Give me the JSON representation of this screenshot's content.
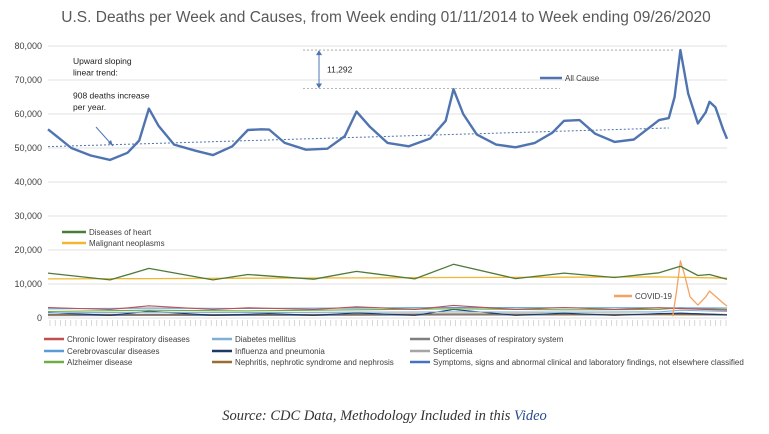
{
  "chart_data": {
    "type": "line",
    "title": "U.S. Deaths per Week and Causes, from Week ending 01/11/2014 to Week ending 09/26/2020",
    "x_range": [
      "2014-01-11",
      "2020-09-26"
    ],
    "ylim": [
      0,
      80000
    ],
    "yticks": [
      "0",
      "10,000",
      "20,000",
      "30,000",
      "40,000",
      "50,000",
      "60,000",
      "70,000",
      "80,000"
    ],
    "grid": true,
    "series": [
      {
        "name": "All Cause",
        "color": "#4f74b0",
        "points": [
          [
            "2014-01-11",
            55500
          ],
          [
            "2014-02-15",
            53200
          ],
          [
            "2014-04-05",
            50000
          ],
          [
            "2014-06-14",
            47800
          ],
          [
            "2014-08-23",
            46500
          ],
          [
            "2014-10-25",
            48600
          ],
          [
            "2014-12-06",
            52200
          ],
          [
            "2015-01-10",
            61600
          ],
          [
            "2015-02-14",
            56500
          ],
          [
            "2015-04-11",
            51000
          ],
          [
            "2015-06-27",
            49200
          ],
          [
            "2015-08-29",
            47900
          ],
          [
            "2015-11-07",
            50500
          ],
          [
            "2016-01-02",
            55300
          ],
          [
            "2016-02-20",
            55500
          ],
          [
            "2016-03-19",
            55400
          ],
          [
            "2016-05-14",
            51500
          ],
          [
            "2016-07-30",
            49500
          ],
          [
            "2016-10-15",
            49800
          ],
          [
            "2016-12-17",
            53500
          ],
          [
            "2017-01-28",
            60700
          ],
          [
            "2017-03-18",
            56200
          ],
          [
            "2017-05-20",
            51500
          ],
          [
            "2017-08-05",
            50500
          ],
          [
            "2017-10-21",
            52800
          ],
          [
            "2017-12-16",
            58000
          ],
          [
            "2018-01-13",
            67300
          ],
          [
            "2018-02-17",
            60000
          ],
          [
            "2018-04-07",
            54000
          ],
          [
            "2018-06-16",
            51000
          ],
          [
            "2018-08-25",
            50200
          ],
          [
            "2018-11-03",
            51500
          ],
          [
            "2019-01-05",
            54500
          ],
          [
            "2019-02-16",
            58000
          ],
          [
            "2019-04-13",
            58200
          ],
          [
            "2019-06-08",
            54200
          ],
          [
            "2019-08-17",
            51800
          ],
          [
            "2019-10-26",
            52500
          ],
          [
            "2019-12-21",
            56000
          ],
          [
            "2020-01-25",
            58200
          ],
          [
            "2020-02-29",
            58800
          ],
          [
            "2020-03-21",
            65000
          ],
          [
            "2020-04-11",
            78800
          ],
          [
            "2020-05-09",
            66000
          ],
          [
            "2020-06-13",
            57200
          ],
          [
            "2020-07-11",
            60500
          ],
          [
            "2020-07-25",
            63600
          ],
          [
            "2020-08-15",
            62000
          ],
          [
            "2020-09-12",
            55500
          ],
          [
            "2020-09-26",
            52700
          ]
        ]
      },
      {
        "name": "Diseases of heart",
        "color": "#4e7a3a",
        "points": [
          [
            "2014-01-11",
            13200
          ],
          [
            "2014-08-23",
            11200
          ],
          [
            "2015-01-10",
            14600
          ],
          [
            "2015-08-29",
            11200
          ],
          [
            "2016-01-02",
            12800
          ],
          [
            "2016-08-27",
            11400
          ],
          [
            "2017-01-28",
            13700
          ],
          [
            "2017-08-26",
            11500
          ],
          [
            "2018-01-13",
            15800
          ],
          [
            "2018-08-25",
            11600
          ],
          [
            "2019-02-16",
            13200
          ],
          [
            "2019-08-17",
            11900
          ],
          [
            "2020-01-25",
            13300
          ],
          [
            "2020-04-11",
            15200
          ],
          [
            "2020-06-13",
            12500
          ],
          [
            "2020-07-25",
            12800
          ],
          [
            "2020-09-26",
            11400
          ]
        ]
      },
      {
        "name": "Malignant neoplasms",
        "color": "#f2b731",
        "points": [
          [
            "2014-01-11",
            11500
          ],
          [
            "2015-01-10",
            11600
          ],
          [
            "2016-01-02",
            11700
          ],
          [
            "2017-01-28",
            11800
          ],
          [
            "2018-01-13",
            11900
          ],
          [
            "2019-02-16",
            12000
          ],
          [
            "2020-01-25",
            12100
          ],
          [
            "2020-09-26",
            11700
          ]
        ]
      },
      {
        "name": "COVID-19",
        "color": "#f4a261",
        "points": [
          [
            "2020-03-14",
            500
          ],
          [
            "2020-03-28",
            8000
          ],
          [
            "2020-04-11",
            16800
          ],
          [
            "2020-04-25",
            13000
          ],
          [
            "2020-05-16",
            6200
          ],
          [
            "2020-06-13",
            3800
          ],
          [
            "2020-07-11",
            6200
          ],
          [
            "2020-07-25",
            7900
          ],
          [
            "2020-08-15",
            6400
          ],
          [
            "2020-09-12",
            4400
          ],
          [
            "2020-09-26",
            3500
          ]
        ]
      },
      {
        "name": "Chronic lower respiratory diseases",
        "color": "#c0504d",
        "points": [
          [
            "2014-01-11",
            3100
          ],
          [
            "2014-08-23",
            2500
          ],
          [
            "2015-01-10",
            3600
          ],
          [
            "2015-08-29",
            2500
          ],
          [
            "2016-01-02",
            3000
          ],
          [
            "2016-08-27",
            2500
          ],
          [
            "2017-01-28",
            3300
          ],
          [
            "2017-08-26",
            2500
          ],
          [
            "2018-01-13",
            3700
          ],
          [
            "2018-08-25",
            2500
          ],
          [
            "2019-02-16",
            3100
          ],
          [
            "2019-08-17",
            2500
          ],
          [
            "2020-01-25",
            3000
          ],
          [
            "2020-09-26",
            2300
          ]
        ]
      },
      {
        "name": "Cerebrovascular diseases",
        "color": "#5b9bd5",
        "points": [
          [
            "2014-01-11",
            2700
          ],
          [
            "2015-01-10",
            2900
          ],
          [
            "2016-01-02",
            2800
          ],
          [
            "2017-01-28",
            2900
          ],
          [
            "2018-01-13",
            3100
          ],
          [
            "2019-02-16",
            3000
          ],
          [
            "2020-01-25",
            3000
          ],
          [
            "2020-09-26",
            2900
          ]
        ]
      },
      {
        "name": "Alzheimer disease",
        "color": "#70ad47",
        "points": [
          [
            "2014-01-11",
            1900
          ],
          [
            "2015-01-10",
            2300
          ],
          [
            "2016-01-02",
            2100
          ],
          [
            "2017-01-28",
            2400
          ],
          [
            "2018-01-13",
            2700
          ],
          [
            "2019-02-16",
            2400
          ],
          [
            "2020-01-25",
            2500
          ],
          [
            "2020-04-11",
            3000
          ],
          [
            "2020-09-26",
            2500
          ]
        ]
      },
      {
        "name": "Diabetes mellitus",
        "color": "#7fb0d8",
        "points": [
          [
            "2014-01-11",
            1500
          ],
          [
            "2015-01-10",
            1700
          ],
          [
            "2016-01-02",
            1600
          ],
          [
            "2017-01-28",
            1700
          ],
          [
            "2018-01-13",
            1800
          ],
          [
            "2019-02-16",
            1700
          ],
          [
            "2020-01-25",
            1800
          ],
          [
            "2020-04-11",
            2300
          ],
          [
            "2020-09-26",
            1900
          ]
        ]
      },
      {
        "name": "Influenza and pneumonia",
        "color": "#1f3864",
        "points": [
          [
            "2014-01-11",
            1600
          ],
          [
            "2014-08-23",
            800
          ],
          [
            "2015-01-10",
            2000
          ],
          [
            "2015-08-29",
            800
          ],
          [
            "2016-01-02",
            1100
          ],
          [
            "2016-03-19",
            1300
          ],
          [
            "2016-08-27",
            800
          ],
          [
            "2017-01-28",
            1500
          ],
          [
            "2017-08-26",
            800
          ],
          [
            "2018-01-13",
            2500
          ],
          [
            "2018-08-25",
            800
          ],
          [
            "2019-02-16",
            1400
          ],
          [
            "2019-08-17",
            800
          ],
          [
            "2020-01-25",
            1300
          ],
          [
            "2020-04-11",
            1400
          ],
          [
            "2020-09-26",
            900
          ]
        ]
      },
      {
        "name": "Nephritis, nephrotic syndrome and nephrosis",
        "color": "#9c6b30",
        "points": [
          [
            "2014-01-11",
            1000
          ],
          [
            "2015-01-10",
            1100
          ],
          [
            "2016-01-02",
            1000
          ],
          [
            "2017-01-28",
            1100
          ],
          [
            "2018-01-13",
            1200
          ],
          [
            "2019-02-16",
            1100
          ],
          [
            "2020-01-25",
            1100
          ],
          [
            "2020-09-26",
            1000
          ]
        ]
      },
      {
        "name": "Other diseases of respiratory system",
        "color": "#7f7f7f",
        "points": [
          [
            "2014-01-11",
            900
          ],
          [
            "2015-01-10",
            1000
          ],
          [
            "2016-01-02",
            900
          ],
          [
            "2017-01-28",
            1000
          ],
          [
            "2018-01-13",
            1100
          ],
          [
            "2019-02-16",
            1000
          ],
          [
            "2020-01-25",
            1000
          ],
          [
            "2020-09-26",
            900
          ]
        ]
      },
      {
        "name": "Septicemia",
        "color": "#a5a5a5",
        "points": [
          [
            "2014-01-11",
            800
          ],
          [
            "2015-01-10",
            900
          ],
          [
            "2016-01-02",
            850
          ],
          [
            "2017-01-28",
            900
          ],
          [
            "2018-01-13",
            950
          ],
          [
            "2019-02-16",
            900
          ],
          [
            "2020-01-25",
            900
          ],
          [
            "2020-09-26",
            850
          ]
        ]
      },
      {
        "name": "Symptoms, signs and abnormal clinical and laboratory findings, not elsewhere classified",
        "color": "#4472c4",
        "points": [
          [
            "2014-01-11",
            700
          ],
          [
            "2015-01-10",
            750
          ],
          [
            "2016-01-02",
            750
          ],
          [
            "2017-01-28",
            800
          ],
          [
            "2018-01-13",
            850
          ],
          [
            "2019-02-16",
            850
          ],
          [
            "2020-01-25",
            900
          ],
          [
            "2020-04-11",
            1400
          ],
          [
            "2020-09-26",
            1000
          ]
        ]
      }
    ],
    "trendline": {
      "from": [
        "2014-01-11",
        50400
      ],
      "to": [
        "2020-02-29",
        55900
      ],
      "color": "#4f74b0"
    },
    "annotations": {
      "trend_note": [
        "Upward sloping",
        "linear trend:",
        "",
        "908 deaths increase",
        "per year."
      ],
      "gap_value": "11,292",
      "gap_range": [
        67500,
        78800
      ]
    },
    "legend_lower": [
      "Chronic lower respiratory diseases",
      "Diabetes mellitus",
      "Other diseases of respiratory system",
      "Cerebrovascular diseases",
      "Influenza and pneumonia",
      "Septicemia",
      "Alzheimer disease",
      "Nephritis, nephrotic syndrome and nephrosis",
      "Symptoms, signs and abnormal clinical and laboratory findings, not elsewhere classified"
    ]
  },
  "caption": {
    "prefix": "Source: CDC Data, Methodology Included in this ",
    "link": "Video"
  }
}
